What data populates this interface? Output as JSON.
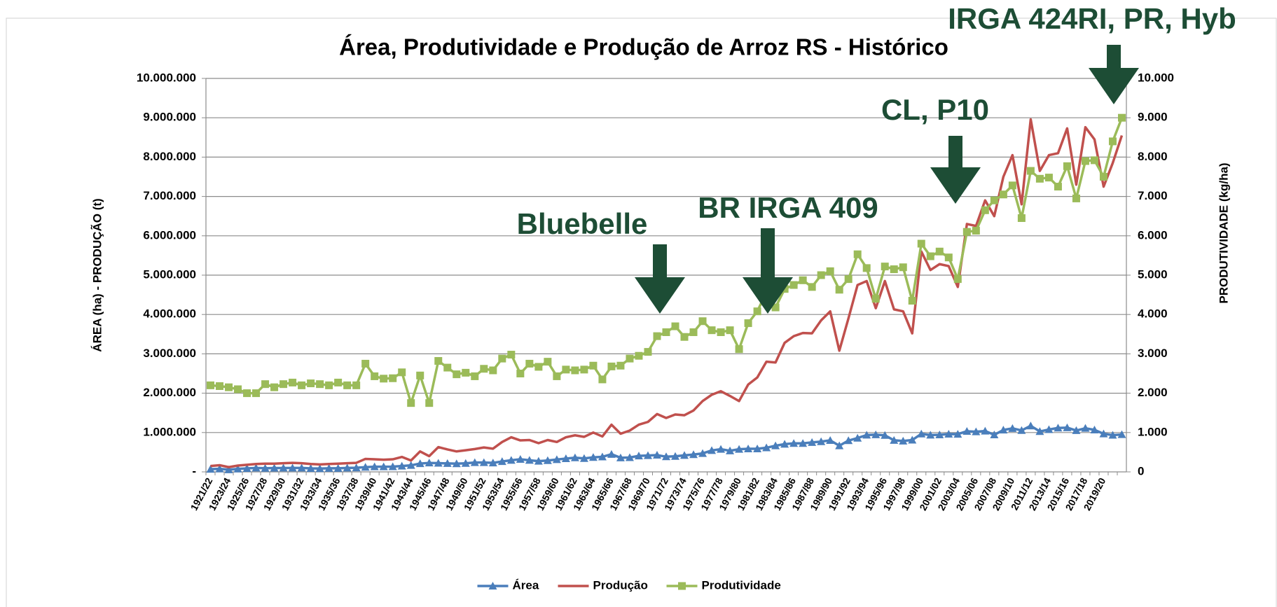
{
  "chart_data": {
    "type": "line",
    "title": "Área, Produtividade e Produção de Arroz RS - Histórico",
    "y_label": "ÁREA (ha) - PRODUÇÃO (t)",
    "y2_label": "PRODUTIVIDADE (kg/ha)",
    "annotations": [
      "Bluebelle",
      "BR IRGA 409",
      "CL, P10",
      "IRGA 424RI, PR, Hyb"
    ],
    "annotation_color": "#1d4d35",
    "grid": true,
    "legend": "bottom",
    "categories": [
      "1921/22",
      null,
      "1923/24",
      null,
      "1925/26",
      null,
      "1927/28",
      null,
      "1929/30",
      null,
      "1931/32",
      null,
      "1933/34",
      null,
      "1935/36",
      null,
      "1937/38",
      null,
      "1939/40",
      null,
      "1941/42",
      null,
      "1943/44",
      null,
      "1945/46",
      null,
      "1947/48",
      null,
      "1949/50",
      null,
      "1951/52",
      null,
      "1953/54",
      null,
      "1955/56",
      null,
      "1957/58",
      null,
      "1959/60",
      null,
      "1961/62",
      null,
      "1963/64",
      null,
      "1965/66",
      null,
      "1967/68",
      null,
      "1969/70",
      null,
      "1971/72",
      null,
      "1973/74",
      null,
      "1975/76",
      null,
      "1977/78",
      null,
      "1979/80",
      null,
      "1981/82",
      null,
      "1983/84",
      null,
      "1985/86",
      null,
      "1987/88",
      null,
      "1989/90",
      null,
      "1991/92",
      null,
      "1993/94",
      null,
      "1995/96",
      null,
      "1997/98",
      null,
      "1999/00",
      null,
      "2001/02",
      null,
      "2003/04",
      null,
      "2005/06",
      null,
      "2007/08",
      null,
      "2009/10",
      null,
      "2011/12",
      null,
      "2013/14",
      null,
      "2015/16",
      null,
      "2017/18",
      null,
      "2019/20",
      null,
      null
    ],
    "ylim": [
      0,
      10000000
    ],
    "yticks": [
      {
        "value": 0,
        "label": "-"
      },
      {
        "value": 1000000,
        "label": "1.000.000"
      },
      {
        "value": 2000000,
        "label": "2.000.000"
      },
      {
        "value": 3000000,
        "label": "3.000.000"
      },
      {
        "value": 4000000,
        "label": "4.000.000"
      },
      {
        "value": 5000000,
        "label": "5.000.000"
      },
      {
        "value": 6000000,
        "label": "6.000.000"
      },
      {
        "value": 7000000,
        "label": "7.000.000"
      },
      {
        "value": 8000000,
        "label": "8.000.000"
      },
      {
        "value": 9000000,
        "label": "9.000.000"
      },
      {
        "value": 10000000,
        "label": "10.000.000"
      }
    ],
    "y2lim": [
      0,
      10000
    ],
    "y2ticks": [
      0,
      {
        "value": 1000,
        "label": "1.000"
      },
      {
        "value": 2000,
        "label": "2.000"
      },
      {
        "value": 3000,
        "label": "3.000"
      },
      {
        "value": 4000,
        "label": "4.000"
      },
      {
        "value": 5000,
        "label": "5.000"
      },
      {
        "value": 6000,
        "label": "6.000"
      },
      {
        "value": 7000,
        "label": "7.000"
      },
      {
        "value": 8000,
        "label": "8.000"
      },
      {
        "value": 9000,
        "label": "9.000"
      },
      {
        "value": 10000,
        "label": "10.000"
      }
    ],
    "series": [
      {
        "name": "Área",
        "color": "#4a7ebb",
        "marker": "triangle",
        "values": [
          68000,
          78000,
          56000,
          76000,
          90000,
          100000,
          94000,
          97000,
          99000,
          101000,
          100000,
          89000,
          85000,
          91000,
          92000,
          100000,
          105000,
          120000,
          132000,
          131000,
          134000,
          150000,
          166000,
          212000,
          228000,
          223000,
          215000,
          210000,
          218000,
          239000,
          237000,
          229000,
          264000,
          295000,
          320000,
          295000,
          273000,
          289000,
          313000,
          338000,
          360000,
          342000,
          370000,
          383000,
          448000,
          359000,
          365000,
          407000,
          416000,
          426000,
          386000,
          395000,
          420000,
          440000,
          470000,
          544000,
          577000,
          536000,
          577000,
          587000,
          588000,
          613000,
          665000,
          705000,
          726000,
          725000,
          749000,
          770000,
          800000,
          665000,
          796000,
          859000,
          936000,
          945000,
          929000,
          802000,
          785000,
          809000,
          966000,
          936000,
          943000,
          960000,
          959000,
          1033000,
          1020000,
          1038000,
          942000,
          1065000,
          1106000,
          1054000,
          1171000,
          1027000,
          1077000,
          1117000,
          1124000,
          1051000,
          1109000,
          1067000,
          967000,
          935000,
          950000
        ]
      },
      {
        "name": "Produção",
        "color": "#c0504d",
        "marker": "none",
        "values": [
          150000,
          170000,
          120000,
          160000,
          180000,
          200000,
          210000,
          210000,
          220000,
          230000,
          220000,
          200000,
          190000,
          200000,
          210000,
          220000,
          230000,
          330000,
          320000,
          310000,
          320000,
          380000,
          290000,
          520000,
          400000,
          630000,
          570000,
          520000,
          550000,
          580000,
          620000,
          590000,
          760000,
          880000,
          800000,
          810000,
          730000,
          810000,
          760000,
          880000,
          930000,
          890000,
          1000000,
          900000,
          1200000,
          970000,
          1050000,
          1200000,
          1270000,
          1470000,
          1370000,
          1460000,
          1440000,
          1560000,
          1800000,
          1960000,
          2050000,
          1930000,
          1800000,
          2220000,
          2400000,
          2800000,
          2780000,
          3280000,
          3450000,
          3530000,
          3520000,
          3850000,
          4080000,
          3080000,
          3900000,
          4750000,
          4850000,
          4160000,
          4850000,
          4130000,
          4080000,
          3520000,
          5600000,
          5130000,
          5280000,
          5230000,
          4700000,
          6300000,
          6250000,
          6900000,
          6500000,
          7500000,
          8050000,
          6800000,
          8960000,
          7650000,
          8050000,
          8100000,
          8730000,
          7300000,
          8760000,
          8450000,
          7250000,
          7850000,
          8550000
        ]
      },
      {
        "name": "Produtividade",
        "color": "#9bbb59",
        "marker": "square",
        "axis": "y2",
        "values": [
          2200,
          2180,
          2150,
          2100,
          2000,
          2000,
          2230,
          2150,
          2230,
          2270,
          2200,
          2250,
          2230,
          2200,
          2270,
          2200,
          2200,
          2750,
          2430,
          2370,
          2380,
          2530,
          1750,
          2450,
          1750,
          2820,
          2650,
          2480,
          2520,
          2430,
          2620,
          2580,
          2880,
          2980,
          2500,
          2750,
          2670,
          2800,
          2430,
          2600,
          2580,
          2600,
          2700,
          2350,
          2680,
          2700,
          2880,
          2950,
          3050,
          3450,
          3550,
          3700,
          3430,
          3550,
          3830,
          3600,
          3550,
          3600,
          3120,
          3780,
          4080,
          4570,
          4180,
          4650,
          4750,
          4870,
          4700,
          5000,
          5100,
          4630,
          4900,
          5530,
          5180,
          4400,
          5220,
          5150,
          5200,
          4350,
          5800,
          5480,
          5600,
          5450,
          4900,
          6100,
          6130,
          6650,
          6900,
          7050,
          7280,
          6450,
          7650,
          7450,
          7480,
          7250,
          7770,
          6950,
          7900,
          7920,
          7500,
          8400,
          9000
        ]
      }
    ]
  }
}
